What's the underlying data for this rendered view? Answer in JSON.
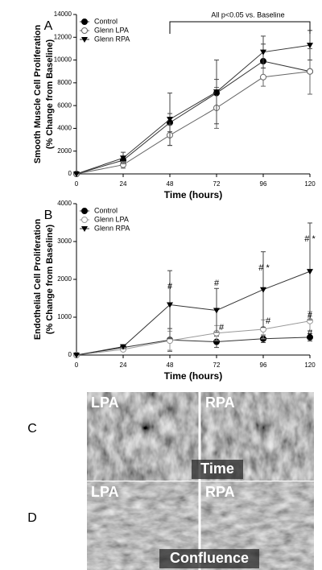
{
  "chart_data": [
    {
      "type": "line",
      "panel": "A",
      "y_label": [
        "Smooth Muscle Cell Proliferation",
        "(% Change from Baseline)"
      ],
      "x_label": "Time (hours)",
      "annotation": "All p<0.05 vs. Baseline",
      "x": [
        0,
        24,
        48,
        72,
        96,
        120
      ],
      "xlim": [
        0,
        120
      ],
      "xticks": [
        0,
        24,
        48,
        72,
        96,
        120
      ],
      "ylim": [
        0,
        14000
      ],
      "yticks": [
        0,
        2000,
        4000,
        6000,
        8000,
        10000,
        12000,
        14000
      ],
      "series": [
        {
          "name": "Control",
          "marker": "filled-circle",
          "color": "#000000",
          "values": [
            0,
            1200,
            4500,
            7100,
            9900,
            9000
          ],
          "errors": [
            0,
            300,
            800,
            1200,
            1500,
            2000
          ]
        },
        {
          "name": "Glenn LPA",
          "marker": "open-circle",
          "color": "#666666",
          "values": [
            0,
            800,
            3400,
            5800,
            8500,
            9000
          ],
          "errors": [
            0,
            300,
            900,
            1800,
            800,
            2000
          ]
        },
        {
          "name": "Glenn RPA",
          "marker": "triangle-down",
          "color": "#000000",
          "values": [
            0,
            1400,
            4800,
            7200,
            10700,
            11300
          ],
          "errors": [
            0,
            500,
            2300,
            2800,
            1400,
            1300
          ]
        }
      ]
    },
    {
      "type": "line",
      "panel": "B",
      "y_label": [
        "Endothelial Cell Proliferation",
        "(% Change from Baseline)"
      ],
      "x_label": "Time (hours)",
      "annotations": [
        "#",
        "#",
        "# *",
        "# *",
        "#",
        "#",
        "#",
        "#"
      ],
      "x": [
        0,
        24,
        48,
        72,
        96,
        120
      ],
      "xlim": [
        0,
        120
      ],
      "xticks": [
        0,
        24,
        48,
        72,
        96,
        120
      ],
      "ylim": [
        0,
        4000
      ],
      "yticks": [
        0,
        1000,
        2000,
        3000,
        4000
      ],
      "series": [
        {
          "name": "Control",
          "marker": "filled-circle",
          "color": "#000000",
          "values": [
            0,
            200,
            400,
            350,
            430,
            470
          ],
          "errors": [
            0,
            50,
            300,
            150,
            100,
            100
          ]
        },
        {
          "name": "Glenn LPA",
          "marker": "open-circle",
          "color": "#999999",
          "values": [
            0,
            150,
            380,
            580,
            680,
            900
          ],
          "errors": [
            0,
            50,
            250,
            200,
            250,
            250
          ]
        },
        {
          "name": "Glenn RPA",
          "marker": "triangle-down",
          "color": "#000000",
          "values": [
            0,
            220,
            1330,
            1180,
            1730,
            2210
          ],
          "errors": [
            0,
            50,
            900,
            580,
            1000,
            1280
          ]
        }
      ]
    }
  ],
  "panels": [
    {
      "letter": "C",
      "left": "LPA",
      "right": "RPA",
      "caption": "Time"
    },
    {
      "letter": "D",
      "left": "LPA",
      "right": "RPA",
      "caption": "Confluence"
    }
  ]
}
